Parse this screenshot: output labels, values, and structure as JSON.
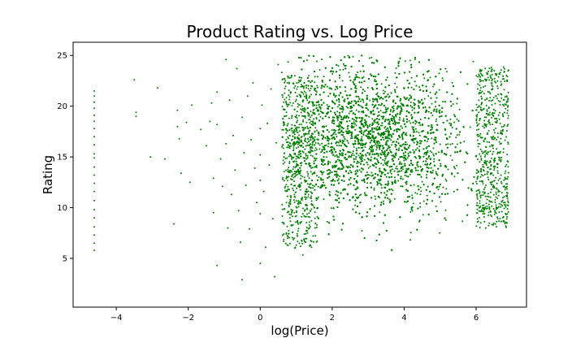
{
  "chart_data": {
    "type": "scatter",
    "title": "Product Rating vs. Log Price",
    "xlabel": "log(Price)",
    "ylabel": "Rating",
    "xlim": [
      -5.2,
      7.4
    ],
    "ylim": [
      0.2,
      26.3
    ],
    "xticks": [
      -4,
      -2,
      0,
      2,
      4,
      6
    ],
    "yticks": [
      5,
      10,
      15,
      20,
      25
    ],
    "xtick_labels": [
      "−4",
      "−2",
      "0",
      "2",
      "4",
      "6"
    ],
    "ytick_labels": [
      "5",
      "10",
      "15",
      "20",
      "25"
    ],
    "grid": false,
    "marker_color": "#008000",
    "series": [
      {
        "values": [
          [
            -4.61,
            21.5
          ],
          [
            -4.61,
            21.0
          ],
          [
            -4.61,
            20.4
          ],
          [
            -4.61,
            19.8
          ],
          [
            -4.61,
            19.1
          ],
          [
            -4.61,
            18.5
          ],
          [
            -4.61,
            17.8
          ],
          [
            -4.61,
            17.0
          ],
          [
            -4.61,
            16.2
          ],
          [
            -4.61,
            15.3
          ],
          [
            -4.61,
            14.9
          ],
          [
            -4.61,
            14.0
          ],
          [
            -4.61,
            13.2
          ],
          [
            -4.61,
            12.4
          ],
          [
            -4.61,
            11.6
          ],
          [
            -4.61,
            10.7
          ],
          [
            -4.61,
            9.8
          ],
          [
            -4.61,
            9.0
          ],
          [
            -4.61,
            8.1
          ],
          [
            -4.61,
            7.3
          ],
          [
            -4.61,
            6.5
          ],
          [
            -4.61,
            5.8
          ],
          [
            -3.5,
            22.6
          ],
          [
            -3.45,
            19.4
          ],
          [
            -3.45,
            19.0
          ],
          [
            -3.05,
            15.0
          ],
          [
            -2.85,
            21.8
          ],
          [
            -2.65,
            14.8
          ],
          [
            -2.4,
            8.4
          ],
          [
            -2.3,
            19.6
          ],
          [
            -2.3,
            18.0
          ],
          [
            -2.25,
            16.8
          ],
          [
            -2.2,
            13.4
          ],
          [
            -2.05,
            18.4
          ],
          [
            -1.95,
            12.5
          ],
          [
            -1.9,
            20.1
          ],
          [
            -1.65,
            17.7
          ],
          [
            -1.5,
            16.1
          ],
          [
            -1.4,
            18.5
          ],
          [
            -1.35,
            20.3
          ],
          [
            -1.3,
            12.9
          ],
          [
            -1.3,
            9.5
          ],
          [
            -1.2,
            21.4
          ],
          [
            -1.2,
            18.2
          ],
          [
            -1.2,
            4.3
          ],
          [
            -1.1,
            14.8
          ],
          [
            -1.05,
            12.1
          ],
          [
            -0.95,
            24.6
          ],
          [
            -0.95,
            16.3
          ],
          [
            -0.9,
            8.0
          ],
          [
            -0.85,
            20.6
          ],
          [
            -0.8,
            11.3
          ],
          [
            -0.75,
            17.1
          ],
          [
            -0.7,
            13.7
          ],
          [
            -0.65,
            23.7
          ],
          [
            -0.6,
            9.7
          ],
          [
            -0.55,
            6.6
          ],
          [
            -0.5,
            18.9
          ],
          [
            -0.5,
            2.9
          ],
          [
            -0.45,
            15.4
          ],
          [
            -0.4,
            12.2
          ],
          [
            -0.35,
            21.0
          ],
          [
            -0.3,
            7.9
          ],
          [
            -0.25,
            16.7
          ],
          [
            -0.2,
            22.3
          ],
          [
            -0.15,
            13.9
          ],
          [
            -0.1,
            10.5
          ],
          [
            0.0,
            17.8
          ],
          [
            0.0,
            15.2
          ],
          [
            0.0,
            12.7
          ],
          [
            0.0,
            9.4
          ],
          [
            0.0,
            4.5
          ],
          [
            0.05,
            20.1
          ],
          [
            0.1,
            11.6
          ],
          [
            0.15,
            6.1
          ],
          [
            0.2,
            18.3
          ],
          [
            0.25,
            14.2
          ],
          [
            0.3,
            21.7
          ],
          [
            0.35,
            8.9
          ],
          [
            0.4,
            3.2
          ],
          [
            0.45,
            16.4
          ],
          [
            0.5,
            24.1
          ]
        ],
        "dense_region": {
          "description_of_distribution": "bulk of points",
          "x_range": [
            0.6,
            6.9
          ],
          "y_range": [
            1.2,
            25.0
          ],
          "center": [
            3.1,
            16.8
          ]
        }
      }
    ]
  }
}
